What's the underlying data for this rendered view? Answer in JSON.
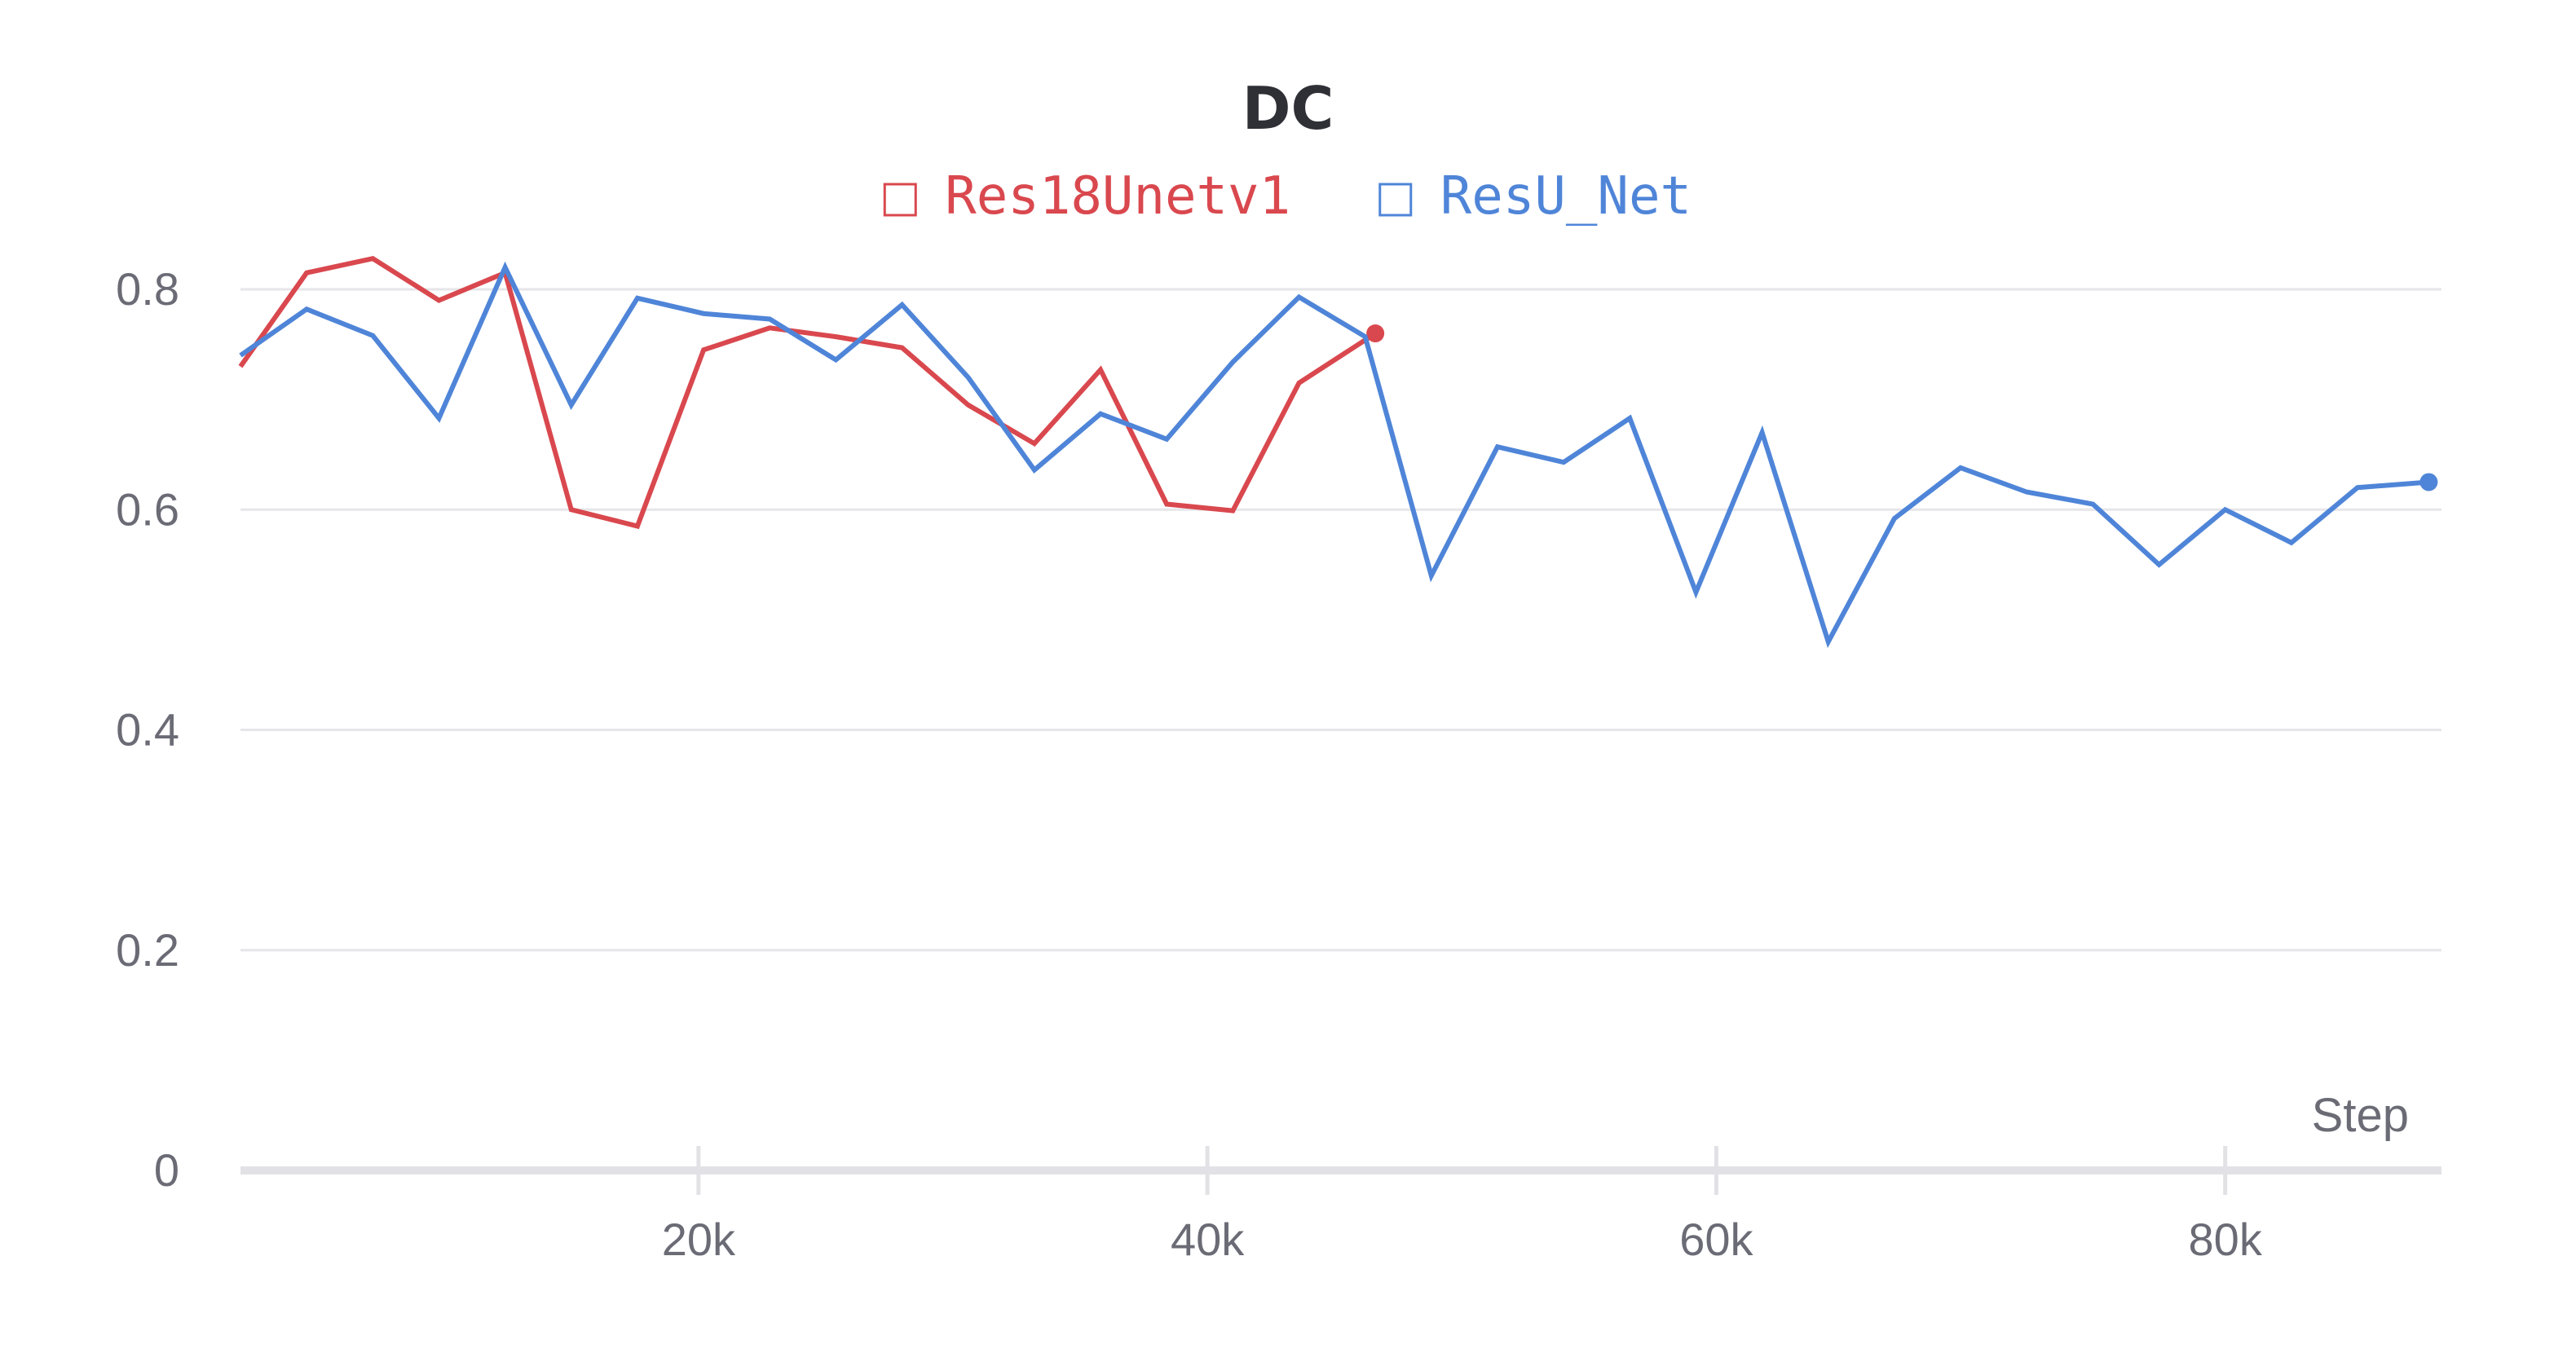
{
  "colors": {
    "res18": "#d9484e",
    "resu": "#4f85d8"
  },
  "chart_data": {
    "type": "line",
    "title": "DC",
    "xlabel": "Step",
    "ylabel": "",
    "xlim": [
      2000,
      88500
    ],
    "ylim": [
      0,
      0.8
    ],
    "grid": true,
    "legend_position": "top-center",
    "yticks": [
      0,
      0.2,
      0.4,
      0.6,
      0.8
    ],
    "ytick_labels": [
      "0",
      "0.2",
      "0.4",
      "0.6",
      "0.8"
    ],
    "xticks": [
      20000,
      40000,
      60000,
      80000
    ],
    "xtick_labels": [
      "20k",
      "40k",
      "60k",
      "80k"
    ],
    "series": [
      {
        "name": "Res18Unetv1",
        "color": "#d9484e",
        "x": [
          2000,
          4600,
          7200,
          9800,
          12400,
          15000,
          17600,
          20200,
          22800,
          25400,
          28000,
          30600,
          33200,
          35800,
          38400,
          41000,
          43600,
          46600
        ],
        "y": [
          0.73,
          0.815,
          0.828,
          0.79,
          0.815,
          0.6,
          0.585,
          0.745,
          0.765,
          0.757,
          0.747,
          0.695,
          0.66,
          0.727,
          0.605,
          0.599,
          0.715,
          0.76
        ]
      },
      {
        "name": "ResU_Net",
        "color": "#4f85d8",
        "x": [
          2000,
          4600,
          7200,
          9800,
          12400,
          15000,
          17600,
          20200,
          22800,
          25400,
          28000,
          30600,
          33200,
          35800,
          38400,
          41000,
          43600,
          46200,
          48800,
          51400,
          54000,
          56600,
          59200,
          61800,
          64400,
          67000,
          69600,
          72200,
          74800,
          77400,
          80000,
          82600,
          85200,
          88000
        ],
        "y": [
          0.74,
          0.782,
          0.758,
          0.683,
          0.82,
          0.695,
          0.792,
          0.778,
          0.773,
          0.736,
          0.786,
          0.72,
          0.636,
          0.687,
          0.664,
          0.734,
          0.793,
          0.757,
          0.54,
          0.657,
          0.643,
          0.683,
          0.525,
          0.67,
          0.48,
          0.592,
          0.638,
          0.616,
          0.605,
          0.55,
          0.6,
          0.57,
          0.62,
          0.625
        ]
      }
    ]
  }
}
